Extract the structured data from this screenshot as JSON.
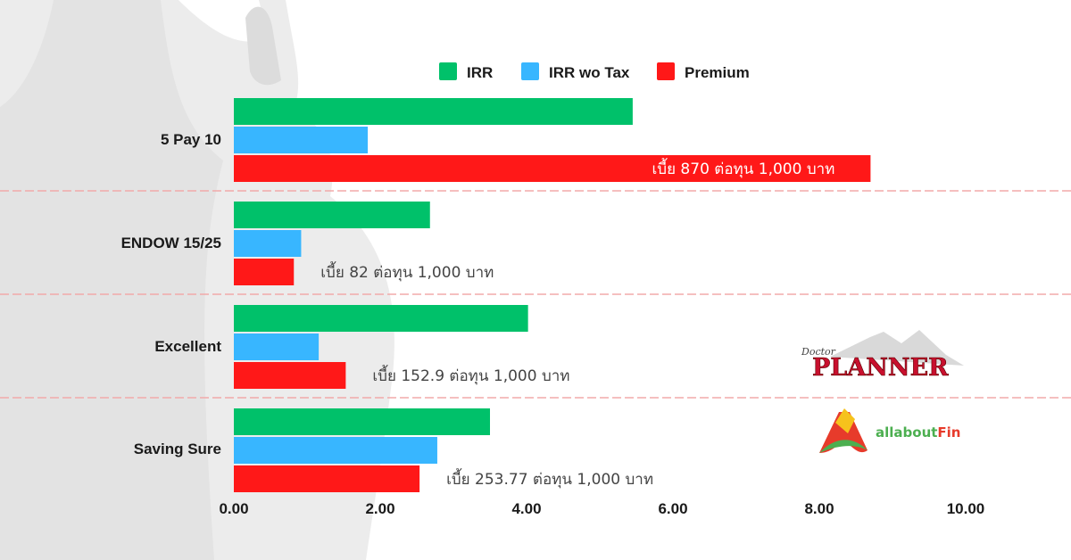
{
  "colors": {
    "irr": "#00c16a",
    "irr_wo_tax": "#38b6ff",
    "premium": "#ff1818",
    "divider": "#f2aaaa"
  },
  "legend": [
    "IRR",
    "IRR wo Tax",
    "Premium"
  ],
  "chart_data": {
    "type": "bar",
    "orientation": "horizontal",
    "categories": [
      "5 Pay 10",
      "ENDOW 15/25",
      "Excellent",
      "Saving Sure"
    ],
    "series": [
      {
        "name": "IRR",
        "color": "#00c16a",
        "values": [
          5.45,
          2.68,
          4.02,
          3.5
        ]
      },
      {
        "name": "IRR wo Tax",
        "color": "#38b6ff",
        "values": [
          1.83,
          0.92,
          1.16,
          2.78
        ]
      },
      {
        "name": "Premium",
        "color": "#ff1818",
        "values": [
          8.7,
          0.82,
          1.529,
          2.5377
        ]
      }
    ],
    "data_labels": [
      "เบี้ย 870 ต่อทุน 1,000 บาท",
      "เบี้ย 82 ต่อทุน 1,000 บาท",
      "เบี้ย 152.9 ต่อทุน 1,000 บาท",
      "เบี้ย 253.77 ต่อทุน 1,000 บาท"
    ],
    "x_ticks": [
      "0.00",
      "2.00",
      "4.00",
      "6.00",
      "8.00",
      "10.00"
    ],
    "xlim": [
      0,
      10
    ],
    "legend_position": "top",
    "grid": false
  },
  "logos": {
    "planner_word": "PLANNER",
    "planner_script": "Doctor",
    "fin_word_1": "allabout",
    "fin_word_2": "Fin"
  }
}
